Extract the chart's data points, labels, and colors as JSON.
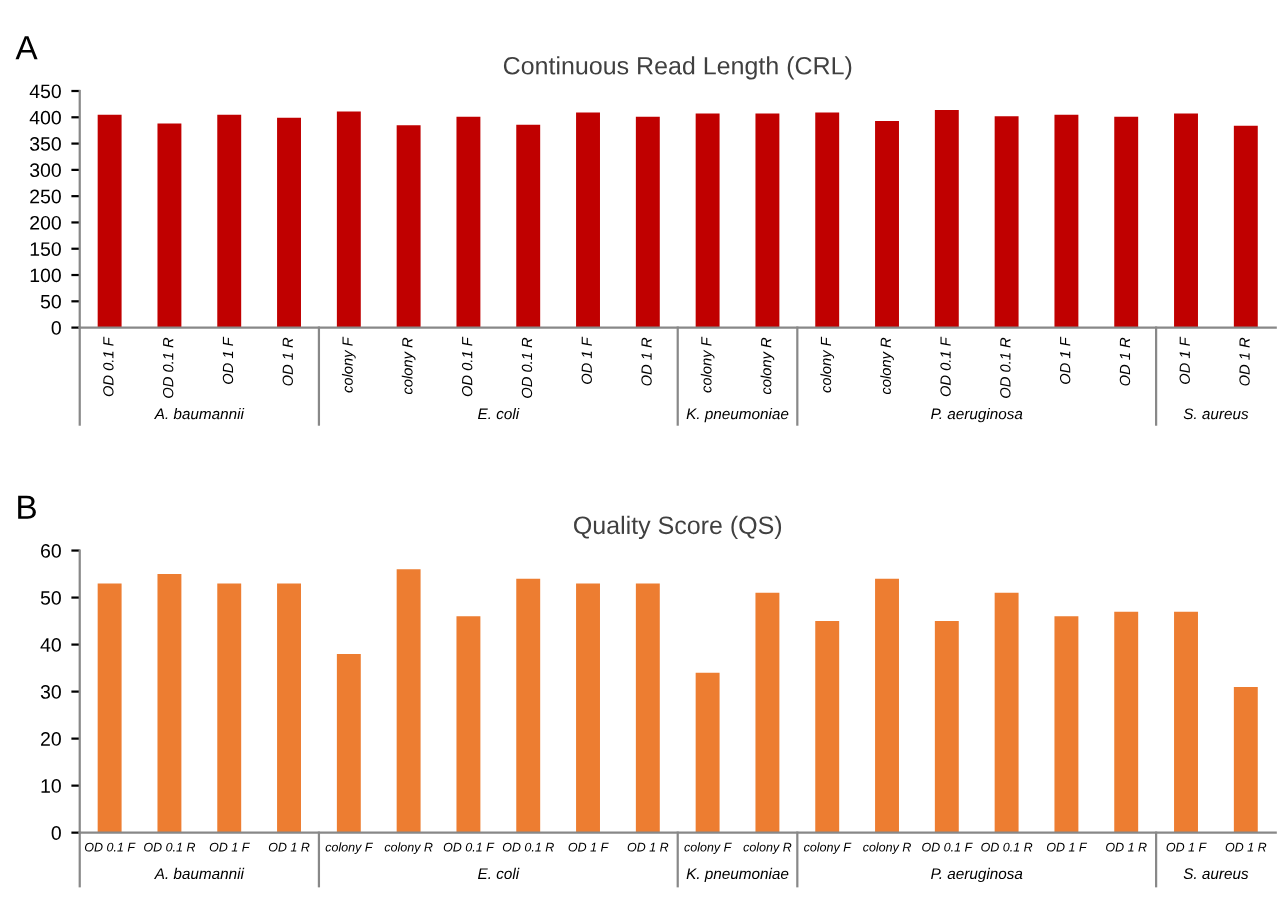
{
  "chart_data": [
    {
      "type": "bar",
      "title": "Continuous Read Length (CRL)",
      "categories": [
        "OD 0.1 F",
        "OD 0.1 R",
        "OD 1 F",
        "OD 1 R",
        "colony F",
        "colony R",
        "OD 0.1 F",
        "OD 0.1 R",
        "OD 1 F",
        "OD 1 R",
        "colony F",
        "colony R",
        "colony F",
        "colony R",
        "OD 0.1 F",
        "OD 0.1 R",
        "OD 1 F",
        "OD 1 R",
        "OD 1 F",
        "OD 1 R"
      ],
      "values": [
        405,
        388,
        405,
        399,
        411,
        385,
        401,
        386,
        409,
        401,
        407,
        407,
        409,
        393,
        414,
        402,
        405,
        401,
        407,
        384
      ],
      "color": "#c00000",
      "ylim": [
        0,
        450
      ],
      "yticks": [
        0,
        50,
        100,
        150,
        200,
        250,
        300,
        350,
        400,
        450
      ],
      "grid": false,
      "annotations": [
        "A",
        "A. baumannii",
        "E. coli",
        "K. pneumoniae",
        "P. aeruginosa",
        "S. aureus"
      ]
    },
    {
      "type": "bar",
      "title": "Quality Score (QS)",
      "categories": [
        "OD 0.1 F",
        "OD 0.1 R",
        "OD 1 F",
        "OD 1 R",
        "colony F",
        "colony R",
        "OD 0.1 F",
        "OD 0.1 R",
        "OD 1 F",
        "OD 1 R",
        "colony F",
        "colony R",
        "colony F",
        "colony R",
        "OD 0.1 F",
        "OD 0.1 R",
        "OD 1 F",
        "OD 1 R",
        "OD 1 F",
        "OD 1 R"
      ],
      "values": [
        53,
        55,
        53,
        53,
        38,
        56,
        46,
        54,
        53,
        53,
        34,
        51,
        45,
        54,
        45,
        51,
        46,
        47,
        47,
        31
      ],
      "color": "#ed7d31",
      "ylim": [
        0,
        60
      ],
      "yticks": [
        0,
        10,
        20,
        30,
        40,
        50,
        60
      ],
      "grid": false,
      "annotations": [
        "B",
        "A. baumannii",
        "E. coli",
        "K. pneumoniae",
        "P. aeruginosa",
        "S. aureus"
      ]
    }
  ]
}
